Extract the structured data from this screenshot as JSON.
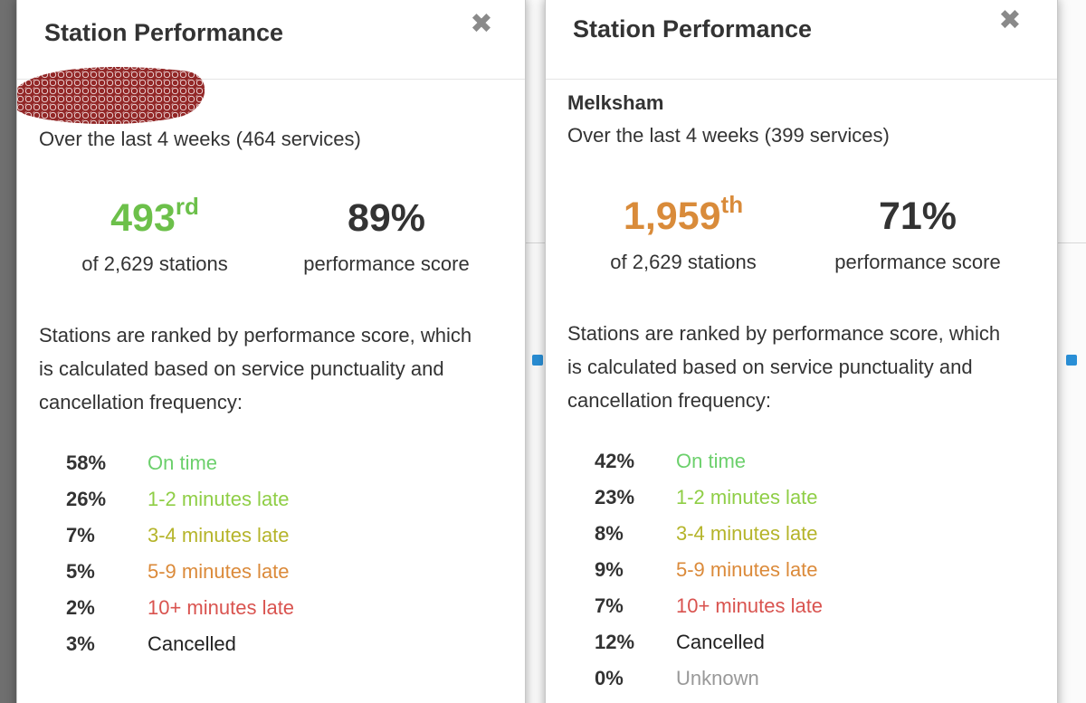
{
  "panels": [
    {
      "title": "Station Performance",
      "close_glyph": "✖",
      "station": "",
      "station_redacted": true,
      "subtitle": "Over the last 4 weeks (464 services)",
      "rank": {
        "number": "493",
        "suffix": "rd",
        "label": "of 2,629 stations",
        "color": "#6cc04a"
      },
      "score": {
        "value": "89%",
        "label": "performance score"
      },
      "description": "Stations are ranked by performance score, which is calculated based on service punctuality and cancellation frequency:",
      "breakdown": [
        {
          "pct": "58%",
          "label": "On time",
          "color": "#6cd06c"
        },
        {
          "pct": "26%",
          "label": "1-2 minutes late",
          "color": "#8fce46"
        },
        {
          "pct": "7%",
          "label": "3-4 minutes late",
          "color": "#b5b42a"
        },
        {
          "pct": "5%",
          "label": "5-9 minutes late",
          "color": "#db8a3a"
        },
        {
          "pct": "2%",
          "label": "10+ minutes late",
          "color": "#d9534f"
        },
        {
          "pct": "3%",
          "label": "Cancelled",
          "color": "#222222"
        }
      ]
    },
    {
      "title": "Station Performance",
      "close_glyph": "✖",
      "station": "Melksham",
      "station_redacted": false,
      "subtitle": "Over the last 4 weeks (399 services)",
      "rank": {
        "number": "1,959",
        "suffix": "th",
        "label": "of 2,629 stations",
        "color": "#d98b3a"
      },
      "score": {
        "value": "71%",
        "label": "performance score"
      },
      "description": "Stations are ranked by performance score, which is calculated based on service punctuality and cancellation frequency:",
      "breakdown": [
        {
          "pct": "42%",
          "label": "On time",
          "color": "#6cd06c"
        },
        {
          "pct": "23%",
          "label": "1-2 minutes late",
          "color": "#8fce46"
        },
        {
          "pct": "8%",
          "label": "3-4 minutes late",
          "color": "#b5b42a"
        },
        {
          "pct": "9%",
          "label": "5-9 minutes late",
          "color": "#db8a3a"
        },
        {
          "pct": "7%",
          "label": "10+ minutes late",
          "color": "#d9534f"
        },
        {
          "pct": "12%",
          "label": "Cancelled",
          "color": "#222222"
        },
        {
          "pct": "0%",
          "label": "Unknown",
          "color": "#999999"
        }
      ]
    }
  ],
  "score_color": "#333333"
}
